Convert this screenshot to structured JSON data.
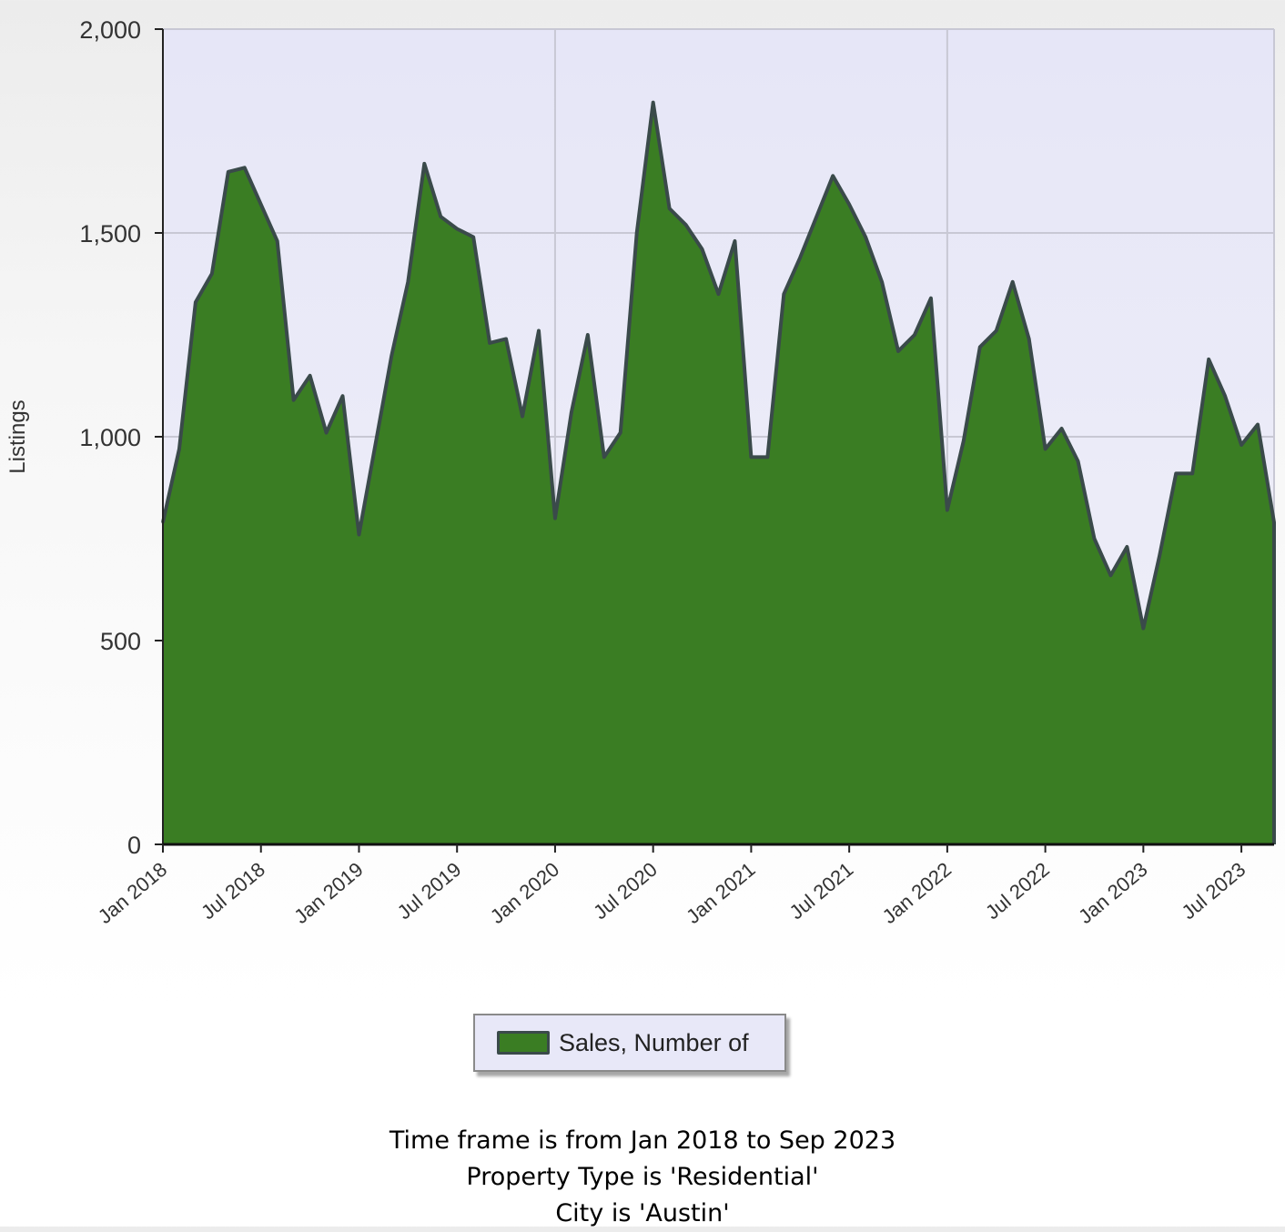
{
  "chart_data": {
    "type": "area",
    "ylabel": "Listings",
    "ylim": [
      0,
      2000
    ],
    "yticks": [
      0,
      500,
      1000,
      1500,
      2000
    ],
    "ytick_labels": [
      "0",
      "500",
      "1,000",
      "1,500",
      "2,000"
    ],
    "xticks": [
      "Jan 2018",
      "Jul 2018",
      "Jan 2019",
      "Jul 2019",
      "Jan 2020",
      "Jul 2020",
      "Jan 2021",
      "Jul 2021",
      "Jan 2022",
      "Jul 2022",
      "Jan 2023",
      "Jul 2023"
    ],
    "x_start": "Jan 2018",
    "x_end": "Sep 2023",
    "grid": true,
    "legend_position": "bottom-center",
    "series": [
      {
        "name": "Sales, Number of",
        "color": "#3a7d23",
        "line_color": "#3a4a4a",
        "values": [
          790,
          970,
          1330,
          1400,
          1650,
          1660,
          1570,
          1480,
          1090,
          1150,
          1010,
          1100,
          760,
          980,
          1200,
          1380,
          1670,
          1540,
          1510,
          1490,
          1230,
          1240,
          1050,
          1260,
          800,
          1060,
          1250,
          950,
          1010,
          1500,
          1820,
          1560,
          1520,
          1460,
          1350,
          1480,
          950,
          950,
          1350,
          1440,
          1540,
          1640,
          1570,
          1490,
          1380,
          1210,
          1250,
          1340,
          820,
          990,
          1220,
          1260,
          1380,
          1240,
          970,
          1020,
          940,
          750,
          660,
          730,
          530,
          710,
          910,
          910,
          1190,
          1100,
          980,
          1030,
          790
        ]
      }
    ]
  },
  "caption": {
    "line1": "Time frame is from Jan 2018 to Sep 2023",
    "line2": "Property Type is 'Residential'",
    "line3": "City is 'Austin'"
  }
}
